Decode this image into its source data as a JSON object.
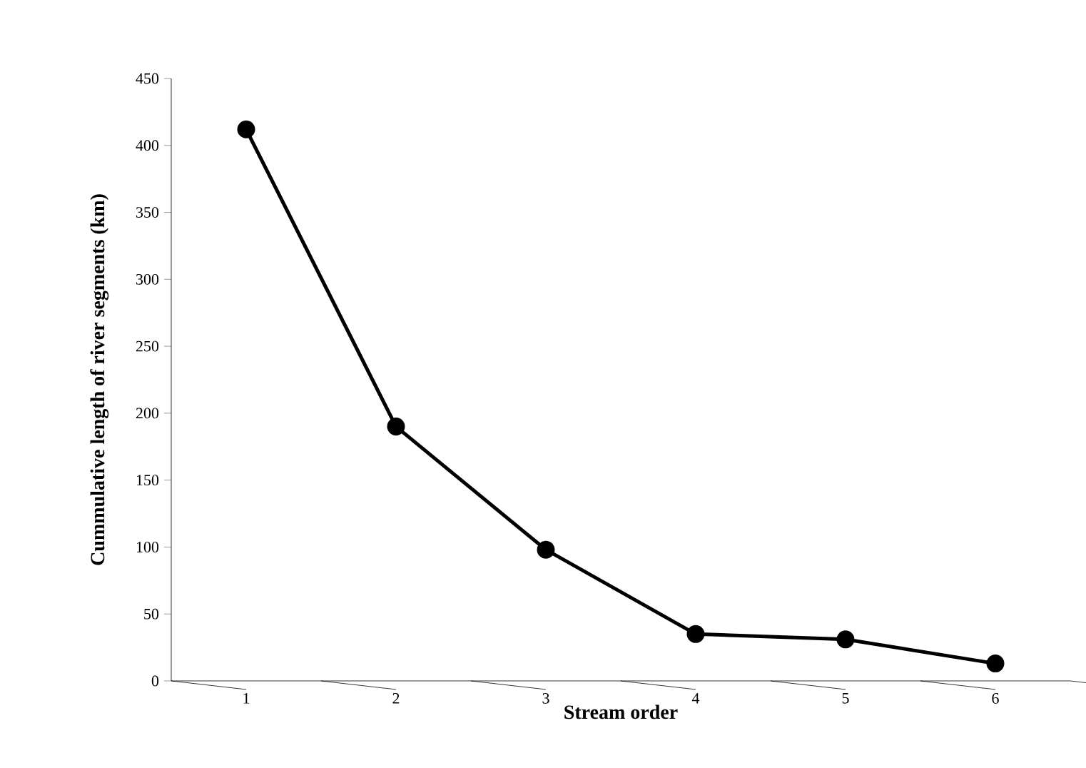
{
  "chart_data": {
    "type": "line",
    "xlabel": "Stream order",
    "ylabel": "Cummulative length of river segments (km)",
    "categories": [
      "1",
      "2",
      "3",
      "4",
      "5",
      "6"
    ],
    "series": [
      {
        "color": "#000000",
        "values": [
          412,
          190,
          98,
          35,
          31,
          13
        ]
      }
    ],
    "ylim": [
      0,
      450
    ],
    "yticks": [
      0,
      50,
      100,
      150,
      200,
      250,
      300,
      350,
      400,
      450
    ],
    "marker": "circle",
    "line_style": "solid",
    "grid": false
  }
}
